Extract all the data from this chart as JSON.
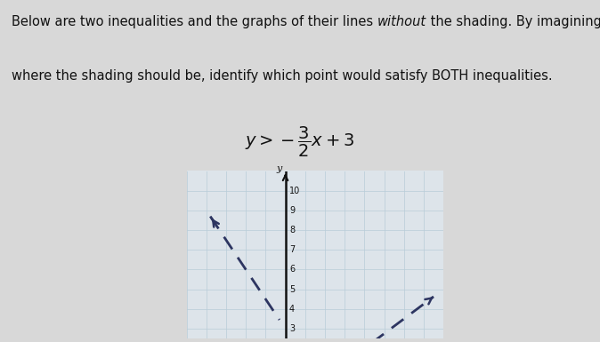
{
  "line1_slope": -1.5,
  "line1_intercept": 3,
  "line2_slope": 0.75,
  "line2_intercept": -1,
  "xlim": [
    -5,
    8
  ],
  "ylim": [
    2.5,
    11
  ],
  "yticks": [
    3,
    4,
    5,
    6,
    7,
    8,
    9,
    10
  ],
  "line_color": "#2d3561",
  "grid_color": "#b8ccd8",
  "bg_color": "#dde4ea",
  "page_bg": "#d8d8d8",
  "text_color": "#111111",
  "font_size_body": 10.5,
  "font_size_eq": 14,
  "line1_x_start": -3.8,
  "line1_x_end": -0.3,
  "line2_x_start": 3.8,
  "line2_x_end": 7.5
}
